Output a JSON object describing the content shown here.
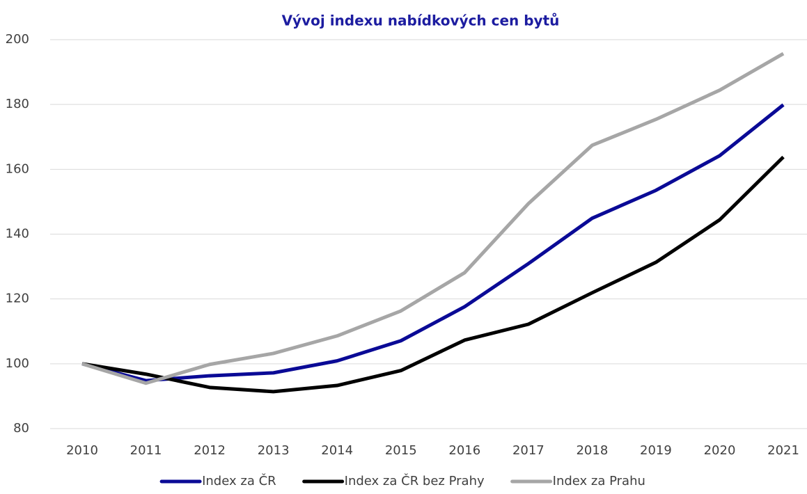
{
  "chart_data": {
    "type": "line",
    "title": "Vývoj indexu nabídkových cen bytů",
    "categories": [
      "2010",
      "2011",
      "2012",
      "2013",
      "2014",
      "2015",
      "2016",
      "2017",
      "2018",
      "2019",
      "2020",
      "2021"
    ],
    "series": [
      {
        "name": "Index za ČR",
        "color": "#0a0a96",
        "values": [
          100,
          94.8,
          96.3,
          97.2,
          100.9,
          107.1,
          117.6,
          130.9,
          144.9,
          153.5,
          164.2,
          179.9
        ]
      },
      {
        "name": "Index za ČR bez Prahy",
        "color": "#000000",
        "values": [
          100,
          96.8,
          92.7,
          91.4,
          93.3,
          97.9,
          107.3,
          112.2,
          121.9,
          131.3,
          144.4,
          163.8
        ]
      },
      {
        "name": "Index za Prahu",
        "color": "#a6a6a6",
        "values": [
          100,
          94,
          99.8,
          103.2,
          108.6,
          116.3,
          128.1,
          149.4,
          167.4,
          175.4,
          184.4,
          195.7
        ]
      }
    ],
    "ylim": [
      80,
      200
    ],
    "yticks": [
      80,
      100,
      120,
      140,
      160,
      180,
      200
    ],
    "grid": true,
    "legend": "bottom"
  }
}
